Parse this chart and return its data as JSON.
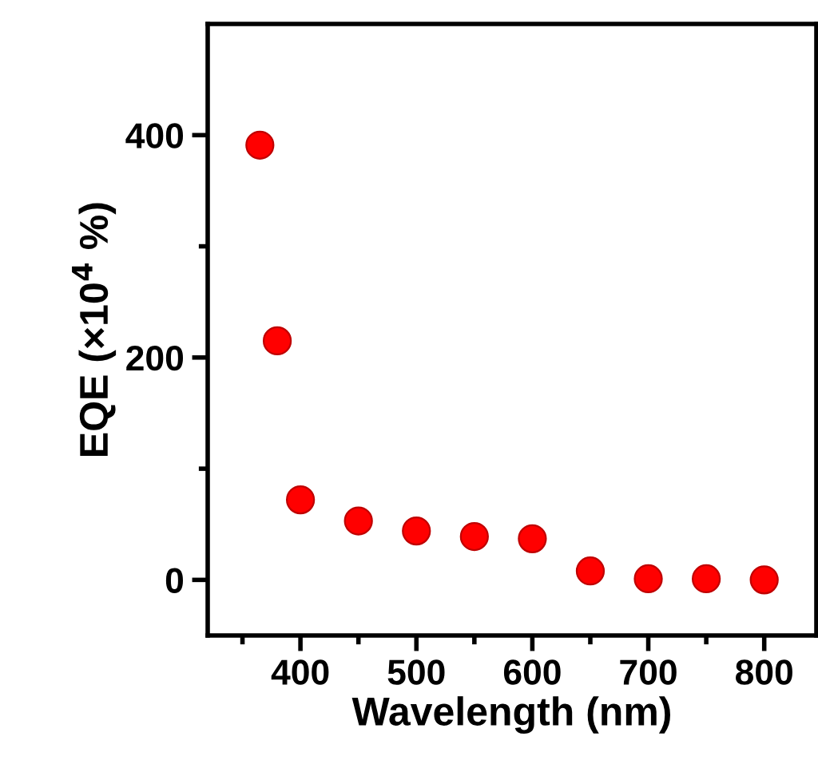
{
  "chart_data": {
    "type": "scatter",
    "xlabel": "Wavelength (nm)",
    "ylabel": "EQE (×10$^{4}$ %)",
    "x": [
      365,
      380,
      400,
      450,
      500,
      550,
      600,
      650,
      700,
      750,
      800
    ],
    "series": [
      {
        "color": "#ff0000",
        "values": [
          391,
          215,
          72,
          53,
          44,
          39,
          37,
          8,
          1,
          1,
          0
        ]
      }
    ],
    "marker": "circle",
    "xlim": [
      320,
      845
    ],
    "ylim": [
      -50,
      500
    ],
    "xticks": [
      {
        "value": 350,
        "label": null
      },
      400,
      {
        "value": 450,
        "label": null
      },
      500,
      {
        "value": 550,
        "label": null
      },
      600,
      {
        "value": 650,
        "label": null
      },
      700,
      {
        "value": 750,
        "label": null
      },
      800
    ],
    "yticks": [
      0,
      {
        "value": 100,
        "label": null
      },
      200,
      {
        "value": 300,
        "label": null
      },
      400
    ],
    "grid": false,
    "legend": false
  }
}
